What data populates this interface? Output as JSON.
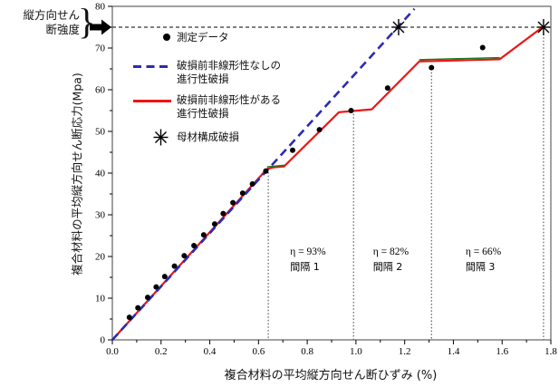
{
  "figure": {
    "strength_note": {
      "line1": "縦方向せん",
      "line2": "断強度",
      "brace": "}"
    },
    "legend": {
      "measured_label": "測定データ",
      "dashed_label_line1": "破損前非線形性なしの",
      "dashed_label_line2": "進行性破損",
      "solid_label_line1": "破損前非線形性がある",
      "solid_label_line2": "進行性破損",
      "asterisk_label": "母材構成破損"
    }
  },
  "colors": {
    "measured": "#000000",
    "dashed_model": "#2b2bb4",
    "solid_model": "#ee1515",
    "overlap_green": "#1d7a1d",
    "matrix_marker": "#000000",
    "strength_line": "#000000",
    "frame": "#6e6e6e",
    "dotted_guide": "#3a3a3a"
  },
  "chart_data": {
    "type": "line",
    "xlabel": "複合材料の平均縦方向せん断ひずみ (%)",
    "ylabel": "複合材料の平均縦方向せん断応力(Mpa)",
    "x_range": [
      0,
      1.8
    ],
    "y_range": [
      0,
      80
    ],
    "x_major_ticks": [
      0.0,
      0.2,
      0.4,
      0.6,
      0.8,
      1.0,
      1.2,
      1.4,
      1.6,
      1.8
    ],
    "x_tick_labels": [
      "0.0",
      "0.2",
      "0.4",
      "0.6",
      "0.8",
      "1.0",
      "1.2",
      "1.4",
      "1.6",
      "1.8"
    ],
    "x_minor_step": 0.1,
    "y_major_ticks": [
      0,
      10,
      20,
      30,
      40,
      50,
      60,
      70,
      80
    ],
    "y_tick_labels": [
      "0",
      "10",
      "20",
      "30",
      "40",
      "50",
      "60",
      "70",
      "80"
    ],
    "y_minor_step": 5,
    "shear_strength": 75,
    "series": [
      {
        "name": "測定データ",
        "type": "scatter",
        "points": [
          [
            0.07,
            5.4
          ],
          [
            0.105,
            7.7
          ],
          [
            0.145,
            10.2
          ],
          [
            0.18,
            12.7
          ],
          [
            0.215,
            15.2
          ],
          [
            0.255,
            17.7
          ],
          [
            0.295,
            20.2
          ],
          [
            0.335,
            22.6
          ],
          [
            0.375,
            25.2
          ],
          [
            0.42,
            27.8
          ],
          [
            0.455,
            30.3
          ],
          [
            0.495,
            32.9
          ],
          [
            0.535,
            35.2
          ],
          [
            0.575,
            37.4
          ],
          [
            0.63,
            40.5
          ],
          [
            0.74,
            45.5
          ],
          [
            0.85,
            50.4
          ],
          [
            0.98,
            55.0
          ],
          [
            1.13,
            60.4
          ],
          [
            1.31,
            65.3
          ],
          [
            1.52,
            70.1
          ]
        ]
      },
      {
        "name": "破損前非線形性なしの進行性破損",
        "type": "dashed-line",
        "points": [
          [
            0,
            0
          ],
          [
            1.24,
            79.4
          ]
        ]
      },
      {
        "name": "破損前非線形性がある進行性破損",
        "type": "line",
        "points": [
          [
            0,
            0
          ],
          [
            0.635,
            41.0
          ],
          [
            0.665,
            41.4
          ],
          [
            0.705,
            41.6
          ],
          [
            0.93,
            54.6
          ],
          [
            1.065,
            55.3
          ],
          [
            1.26,
            66.8
          ],
          [
            1.59,
            67.3
          ],
          [
            1.77,
            75.2
          ]
        ]
      },
      {
        "name": "母材構成破損",
        "type": "asterisk",
        "points": [
          [
            1.175,
            75
          ],
          [
            1.77,
            75
          ]
        ]
      }
    ],
    "green_overlap_segments": [
      [
        [
          0.635,
          41.5
        ],
        [
          0.71,
          41.9
        ]
      ],
      [
        [
          1.26,
          67.2
        ],
        [
          1.59,
          67.7
        ]
      ]
    ],
    "vertical_dotted_lines": [
      {
        "x": 0.64,
        "y_top": 41
      },
      {
        "x": 0.99,
        "y_top": 55
      },
      {
        "x": 1.31,
        "y_top": 65
      },
      {
        "x": 1.77,
        "y_top": 75
      }
    ],
    "regions": [
      {
        "eta": "η = 93%",
        "interval": "間隔 1",
        "label_x": 0.73
      },
      {
        "eta": "η = 82%",
        "interval": "間隔 2",
        "label_x": 1.07
      },
      {
        "eta": "η = 66%",
        "interval": "間隔 3",
        "label_x": 1.45
      }
    ]
  }
}
